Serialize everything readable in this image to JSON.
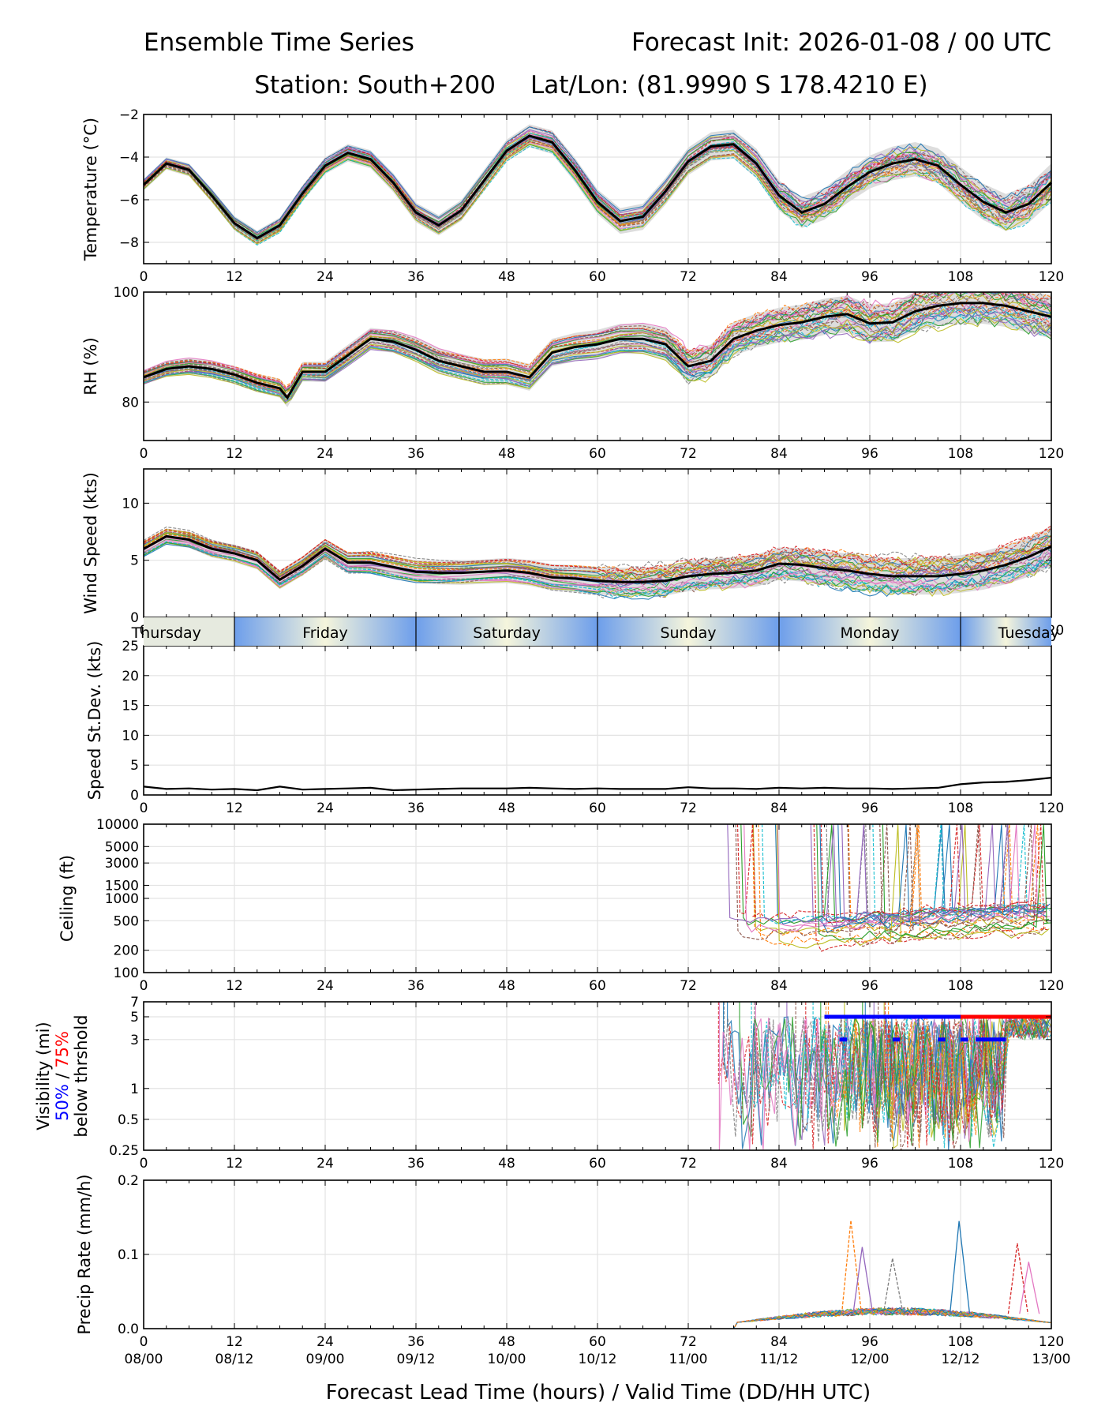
{
  "header": {
    "title_left": "Ensemble Time Series",
    "title_right": "Forecast Init: 2026-01-08 / 00 UTC",
    "station": "Station: South+200",
    "latlon": "Lat/Lon: (81.9990 S 178.4210 E)"
  },
  "colors": {
    "members": [
      "#1f77b4",
      "#ff7f0e",
      "#2ca02c",
      "#d62728",
      "#9467bd",
      "#8c564b",
      "#e377c2",
      "#7f7f7f",
      "#bcbd22",
      "#17becf"
    ],
    "mean": "#000000",
    "spread": "#d9d9d9",
    "p50": "#0000ff",
    "p75": "#ff0000",
    "day_light": "#f5f5dc",
    "day_dark": "#6d9eeb"
  },
  "x_axis": {
    "lead_ticks": [
      "0",
      "12",
      "24",
      "36",
      "48",
      "60",
      "72",
      "84",
      "96",
      "108",
      "120"
    ],
    "valid_ticks": [
      "08/00",
      "08/12",
      "09/00",
      "09/12",
      "10/00",
      "10/12",
      "11/00",
      "11/12",
      "12/00",
      "12/12",
      "13/00"
    ],
    "label": "Forecast Lead Time (hours) / Valid Time (DD/HH UTC)"
  },
  "day_band": {
    "days": [
      "Thursday",
      "Friday",
      "Saturday",
      "Sunday",
      "Monday",
      "Tuesday"
    ]
  },
  "chart_data": [
    {
      "type": "line",
      "id": "temperature",
      "ylabel": "Temperature (°C)",
      "ylim": [
        -9,
        -2
      ],
      "yticks": [
        -2,
        -4,
        -6,
        -8
      ],
      "ytick_labels": [
        "−2",
        "−4",
        "−6",
        "−8"
      ],
      "xlim": [
        0,
        120
      ],
      "mean_series": {
        "x": [
          0,
          3,
          6,
          9,
          12,
          15,
          18,
          21,
          24,
          27,
          30,
          33,
          36,
          39,
          42,
          45,
          48,
          51,
          54,
          57,
          60,
          63,
          66,
          69,
          72,
          75,
          78,
          81,
          84,
          87,
          90,
          93,
          96,
          99,
          102,
          105,
          108,
          111,
          114,
          117,
          120
        ],
        "y": [
          -5.3,
          -4.3,
          -4.6,
          -5.8,
          -7.1,
          -7.8,
          -7.2,
          -5.7,
          -4.4,
          -3.8,
          -4.1,
          -5.2,
          -6.6,
          -7.2,
          -6.5,
          -5.1,
          -3.7,
          -3.0,
          -3.3,
          -4.6,
          -6.1,
          -7.0,
          -6.8,
          -5.6,
          -4.2,
          -3.5,
          -3.4,
          -4.3,
          -5.8,
          -6.6,
          -6.2,
          -5.4,
          -4.7,
          -4.3,
          -4.1,
          -4.4,
          -5.3,
          -6.1,
          -6.6,
          -6.2,
          -5.2
        ]
      },
      "spread_band": "ensemble min–max (grey)",
      "members": 30
    },
    {
      "type": "line",
      "id": "rh",
      "ylabel": "RH (%)",
      "ylim": [
        73,
        100
      ],
      "yticks": [
        80,
        100
      ],
      "ytick_labels": [
        "80",
        "100"
      ],
      "xlim": [
        0,
        120
      ],
      "mean_series": {
        "x": [
          0,
          3,
          6,
          9,
          12,
          15,
          18,
          19,
          21,
          24,
          27,
          30,
          33,
          36,
          39,
          42,
          45,
          48,
          51,
          54,
          57,
          60,
          63,
          66,
          69,
          72,
          75,
          78,
          81,
          84,
          87,
          90,
          93,
          96,
          99,
          102,
          105,
          108,
          111,
          114,
          117,
          120
        ],
        "y": [
          84.5,
          86,
          86.5,
          86,
          85,
          83.5,
          82.5,
          80.8,
          85.5,
          85.5,
          88.5,
          91.5,
          91,
          89.5,
          87.5,
          86.5,
          85.5,
          85.5,
          84.5,
          89,
          90,
          90.5,
          91.5,
          91.5,
          90.5,
          86.5,
          87.5,
          91.5,
          93,
          94,
          94.5,
          95.5,
          96,
          94.3,
          94.5,
          96.5,
          97.5,
          98,
          98,
          97.5,
          96.5,
          95.5
        ]
      },
      "members": 30
    },
    {
      "type": "line",
      "id": "wind_speed",
      "ylabel": "Wind Speed (kts)",
      "ylim": [
        0,
        13
      ],
      "yticks": [
        0,
        5,
        10
      ],
      "ytick_labels": [
        "0",
        "5",
        "10"
      ],
      "xlim": [
        0,
        120
      ],
      "mean_series": {
        "x": [
          0,
          3,
          6,
          9,
          12,
          15,
          18,
          21,
          24,
          27,
          30,
          33,
          36,
          39,
          42,
          45,
          48,
          51,
          54,
          57,
          60,
          63,
          66,
          69,
          72,
          75,
          78,
          81,
          84,
          87,
          90,
          93,
          96,
          99,
          102,
          105,
          108,
          111,
          114,
          117,
          120
        ],
        "y": [
          6.0,
          7.1,
          6.8,
          6.0,
          5.6,
          5.0,
          3.3,
          4.5,
          6.0,
          4.8,
          4.8,
          4.4,
          4.0,
          3.9,
          3.9,
          4.0,
          4.1,
          3.9,
          3.5,
          3.4,
          3.2,
          3.1,
          3.1,
          3.2,
          3.6,
          3.8,
          3.9,
          4.1,
          4.7,
          4.6,
          4.3,
          4.1,
          3.8,
          3.6,
          3.6,
          3.6,
          3.8,
          4.1,
          4.6,
          5.3,
          6.2
        ]
      },
      "members": 30
    },
    {
      "type": "line",
      "id": "speed_stdev",
      "ylabel": "Speed St.Dev. (kts)",
      "ylim": [
        0,
        25
      ],
      "yticks": [
        0,
        5,
        10,
        15,
        20,
        25
      ],
      "ytick_labels": [
        "0",
        "5",
        "10",
        "15",
        "20",
        "25"
      ],
      "xlim": [
        0,
        120
      ],
      "series": [
        {
          "name": "std dev",
          "x": [
            0,
            3,
            6,
            9,
            12,
            15,
            18,
            21,
            24,
            27,
            30,
            33,
            36,
            39,
            42,
            45,
            48,
            51,
            54,
            57,
            60,
            63,
            66,
            69,
            72,
            75,
            78,
            81,
            84,
            87,
            90,
            93,
            96,
            99,
            102,
            105,
            108,
            111,
            114,
            117,
            120
          ],
          "y": [
            1.4,
            1.0,
            1.1,
            0.9,
            1.0,
            0.8,
            1.4,
            0.9,
            1.0,
            1.1,
            1.2,
            0.8,
            0.9,
            1.0,
            1.1,
            1.1,
            1.1,
            1.2,
            1.1,
            1.0,
            1.1,
            1.0,
            1.0,
            1.0,
            1.3,
            1.1,
            1.1,
            1.0,
            1.2,
            1.1,
            1.2,
            1.1,
            1.1,
            1.0,
            1.1,
            1.2,
            1.8,
            2.1,
            2.2,
            2.5,
            2.9
          ]
        }
      ]
    },
    {
      "type": "line",
      "id": "ceiling",
      "ylabel": "Ceiling (ft)",
      "yscale": "log",
      "ylim": [
        100,
        10000
      ],
      "yticks": [
        100,
        200,
        500,
        1000,
        1500,
        3000,
        5000,
        10000
      ],
      "ytick_labels": [
        "100",
        "200",
        "500",
        "1000",
        "1500",
        "3000",
        "5000",
        "10000"
      ],
      "xlim": [
        0,
        120
      ],
      "first_cloud_hour": 76,
      "typical_low_ceiling_range": [
        200,
        800
      ]
    },
    {
      "type": "line",
      "id": "visibility",
      "ylabel_lines": [
        "Visibility (mi)",
        "50%",
        "/",
        "75%",
        "below thrshold"
      ],
      "yscale": "log",
      "ylim": [
        0.25,
        7
      ],
      "yticks": [
        0.25,
        0.5,
        1,
        3,
        5,
        7
      ],
      "ytick_labels": [
        "0.25",
        "0.5",
        "1",
        "3",
        "5",
        "7"
      ],
      "xlim": [
        0,
        120
      ],
      "threshold_markers": {
        "p50_at_5mi": [
          90,
          120
        ],
        "p75_at_5mi": [
          108,
          120
        ],
        "p50_at_3mi": [
          [
            92,
            93
          ],
          [
            99,
            100
          ],
          [
            105,
            106
          ],
          [
            108,
            109
          ],
          [
            110,
            114
          ]
        ]
      }
    },
    {
      "type": "line",
      "id": "precip",
      "ylabel": "Precip Rate (mm/h)",
      "ylim": [
        0,
        0.2
      ],
      "yticks": [
        0.0,
        0.1,
        0.2
      ],
      "ytick_labels": [
        "0.0",
        "0.1",
        "0.2"
      ],
      "xlim": [
        0,
        120
      ],
      "peaks": [
        {
          "x": 93.5,
          "y": 0.146
        },
        {
          "x": 95,
          "y": 0.11
        },
        {
          "x": 99,
          "y": 0.095
        },
        {
          "x": 107.8,
          "y": 0.145
        },
        {
          "x": 115.5,
          "y": 0.115
        },
        {
          "x": 117,
          "y": 0.09
        }
      ]
    }
  ]
}
